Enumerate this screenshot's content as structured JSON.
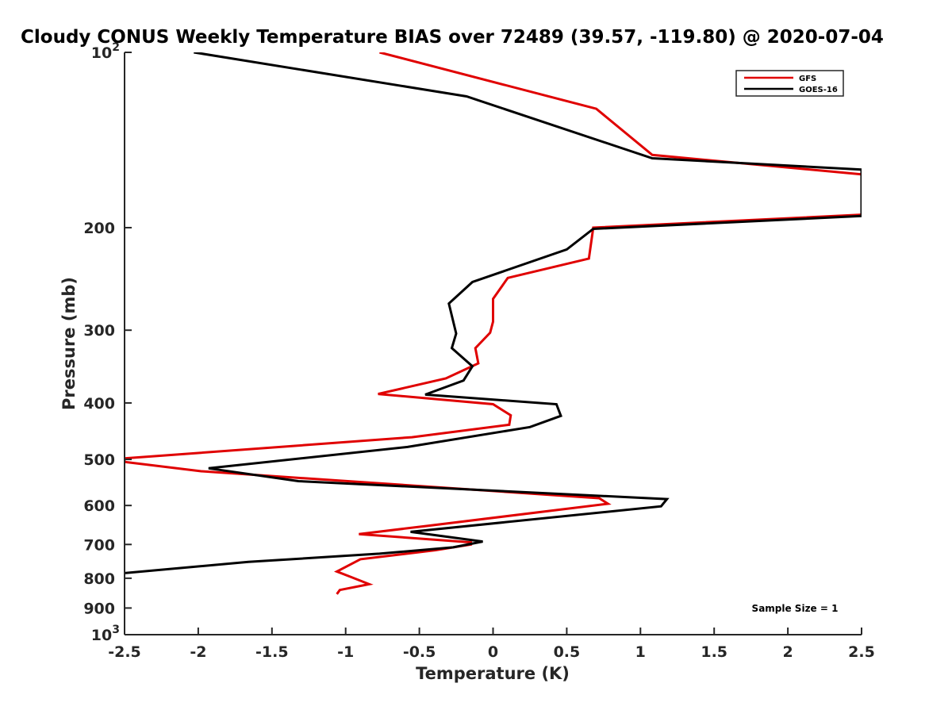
{
  "chart_data": {
    "type": "line",
    "title": "Cloudy CONUS Weekly Temperature BIAS over 72489 (39.57, -119.80) @ 2020-07-04",
    "xlabel": "Temperature (K)",
    "ylabel": "Pressure (mb)",
    "xlim": [
      -2.5,
      2.5
    ],
    "ylim": [
      100,
      1000
    ],
    "y_scale": "log",
    "y_reversed": true,
    "grid": false,
    "legend_position": "top-right",
    "x_ticks": [
      -2.5,
      -2,
      -1.5,
      -1,
      -0.5,
      0,
      0.5,
      1,
      1.5,
      2,
      2.5
    ],
    "x_tick_labels": [
      "-2.5",
      "-2",
      "-1.5",
      "-1",
      "-0.5",
      "0",
      "0.5",
      "1",
      "1.5",
      "2",
      "2.5"
    ],
    "y_ticks": [
      100,
      200,
      300,
      400,
      500,
      600,
      700,
      800,
      900,
      1000
    ],
    "y_tick_labels": [
      {
        "base": "10",
        "exp": "2"
      },
      {
        "base": "200",
        "exp": ""
      },
      {
        "base": "300",
        "exp": ""
      },
      {
        "base": "400",
        "exp": ""
      },
      {
        "base": "500",
        "exp": ""
      },
      {
        "base": "600",
        "exp": ""
      },
      {
        "base": "700",
        "exp": ""
      },
      {
        "base": "800",
        "exp": ""
      },
      {
        "base": "900",
        "exp": ""
      },
      {
        "base": "10",
        "exp": "3"
      }
    ],
    "annotation": "Sample Size = 1",
    "series": [
      {
        "name": "GFS",
        "color": "#e00000",
        "points": [
          [
            -0.77,
            100
          ],
          [
            0.7,
            125
          ],
          [
            1.08,
            150
          ],
          [
            2.5,
            162
          ],
          [
            2.5,
            190
          ],
          [
            0.68,
            200
          ],
          [
            0.65,
            226
          ],
          [
            0.1,
            244
          ],
          [
            0.0,
            265
          ],
          [
            0.0,
            290
          ],
          [
            -0.02,
            303
          ],
          [
            -0.12,
            322
          ],
          [
            -0.1,
            342
          ],
          [
            -0.32,
            363
          ],
          [
            -0.78,
            386
          ],
          [
            0.0,
            402
          ],
          [
            0.12,
            420
          ],
          [
            0.11,
            436
          ],
          [
            -0.55,
            458
          ],
          [
            -2.5,
            498
          ],
          [
            -2.5,
            505
          ],
          [
            -1.98,
            524
          ],
          [
            0.72,
            583
          ],
          [
            0.78,
            596
          ],
          [
            -0.44,
            650
          ],
          [
            -0.91,
            672
          ],
          [
            -0.15,
            694
          ],
          [
            -0.15,
            700
          ],
          [
            -0.39,
            716
          ],
          [
            -0.9,
            742
          ],
          [
            -1.06,
            779
          ],
          [
            -0.97,
            795
          ],
          [
            -0.84,
            819
          ],
          [
            -1.04,
            838
          ],
          [
            -1.06,
            852
          ]
        ]
      },
      {
        "name": "GOES-16",
        "color": "#000000",
        "points": [
          [
            -2.03,
            100
          ],
          [
            -0.18,
            119
          ],
          [
            1.08,
            152
          ],
          [
            2.5,
            159
          ],
          [
            2.5,
            191
          ],
          [
            0.68,
            201
          ],
          [
            0.5,
            218
          ],
          [
            -0.14,
            248
          ],
          [
            -0.3,
            270
          ],
          [
            -0.25,
            304
          ],
          [
            -0.28,
            322
          ],
          [
            -0.14,
            346
          ],
          [
            -0.2,
            366
          ],
          [
            -0.46,
            387
          ],
          [
            0.43,
            402
          ],
          [
            0.46,
            421
          ],
          [
            0.25,
            440
          ],
          [
            -0.58,
            476
          ],
          [
            -1.93,
            518
          ],
          [
            -1.32,
            545
          ],
          [
            1.18,
            585
          ],
          [
            1.14,
            602
          ],
          [
            -0.56,
            666
          ],
          [
            -0.07,
            692
          ],
          [
            -0.27,
            708
          ],
          [
            -0.77,
            726
          ],
          [
            -1.66,
            750
          ],
          [
            -2.5,
            784
          ]
        ]
      }
    ]
  }
}
